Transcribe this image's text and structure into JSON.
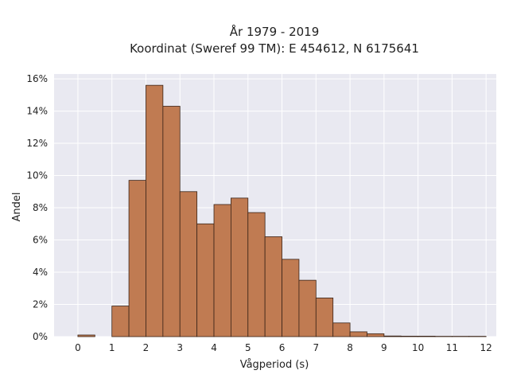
{
  "chart_data": {
    "type": "bar",
    "title": [
      "År 1979 - 2019",
      "Koordinat (Sweref 99 TM): E 454612, N 6175641"
    ],
    "xlabel": "Vågperiod (s)",
    "ylabel": "Andel",
    "xlim": [
      -0.7,
      12.3
    ],
    "ylim": [
      0,
      16.3
    ],
    "x_ticks": [
      0,
      1,
      2,
      3,
      4,
      5,
      6,
      7,
      8,
      9,
      10,
      11,
      12
    ],
    "y_ticks": [
      0,
      2,
      4,
      6,
      8,
      10,
      12,
      14,
      16
    ],
    "y_tick_suffix": "%",
    "bin_width": 0.5,
    "bins": [
      {
        "x0": 0.0,
        "value": 0.1
      },
      {
        "x0": 1.0,
        "value": 1.9
      },
      {
        "x0": 1.5,
        "value": 9.7
      },
      {
        "x0": 2.0,
        "value": 15.6
      },
      {
        "x0": 2.5,
        "value": 14.3
      },
      {
        "x0": 3.0,
        "value": 9.0
      },
      {
        "x0": 3.5,
        "value": 7.0
      },
      {
        "x0": 4.0,
        "value": 8.2
      },
      {
        "x0": 4.5,
        "value": 8.6
      },
      {
        "x0": 5.0,
        "value": 7.7
      },
      {
        "x0": 5.5,
        "value": 6.2
      },
      {
        "x0": 6.0,
        "value": 4.8
      },
      {
        "x0": 6.5,
        "value": 3.5
      },
      {
        "x0": 7.0,
        "value": 2.4
      },
      {
        "x0": 7.5,
        "value": 0.85
      },
      {
        "x0": 8.0,
        "value": 0.3
      },
      {
        "x0": 8.5,
        "value": 0.18
      },
      {
        "x0": 9.0,
        "value": 0.04
      },
      {
        "x0": 9.5,
        "value": 0.03
      },
      {
        "x0": 10.0,
        "value": 0.03
      },
      {
        "x0": 10.5,
        "value": 0.02
      },
      {
        "x0": 11.0,
        "value": 0.02
      },
      {
        "x0": 11.5,
        "value": 0.02
      }
    ],
    "grid": true,
    "colors": {
      "bar": "#c07b52",
      "bar_edge": "#3a2418",
      "plot_bg": "#e9e9f1",
      "grid": "#ffffff"
    }
  }
}
